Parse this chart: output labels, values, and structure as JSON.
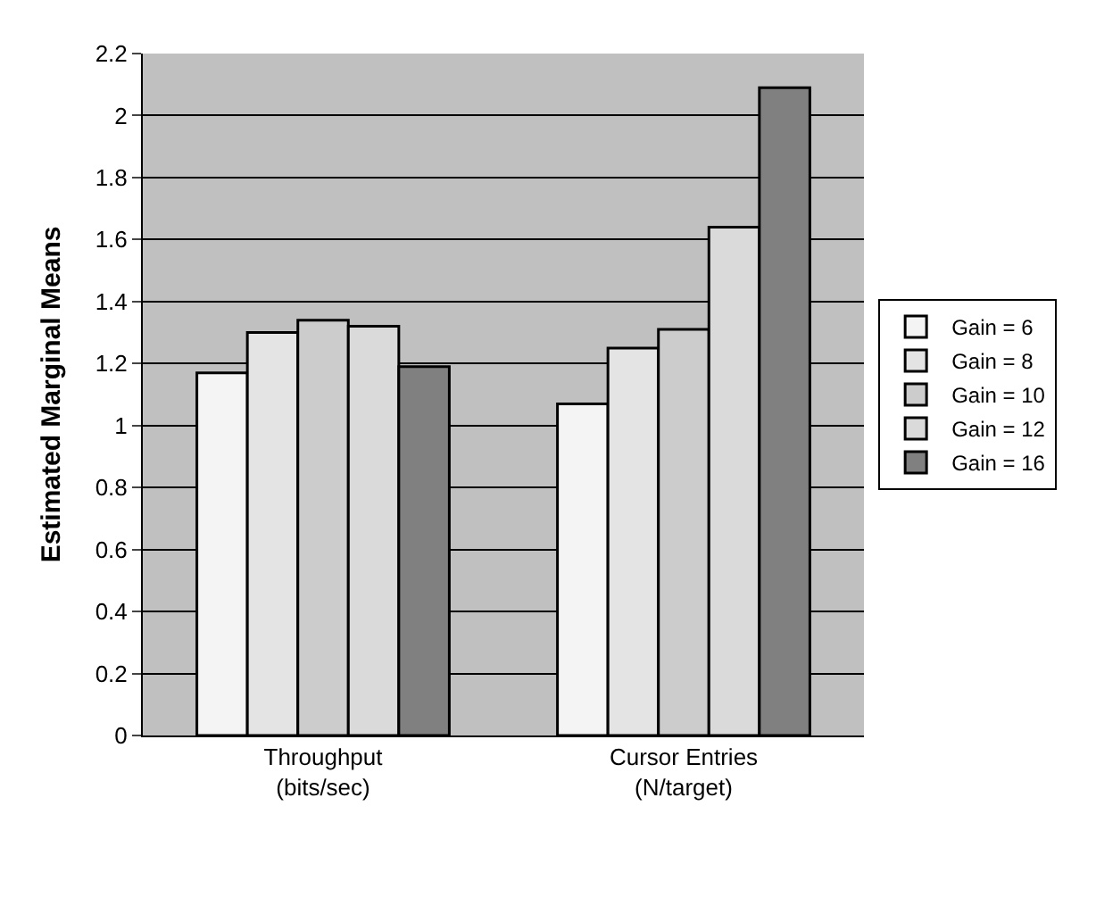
{
  "chart_data": {
    "type": "bar",
    "ylabel": "Estimated Marginal Means",
    "categories": [
      "Throughput\n(bits/sec)",
      "Cursor Entries\n(N/target)"
    ],
    "series": [
      {
        "name": "Gain = 6",
        "color": "#f4f4f4",
        "values": [
          1.17,
          1.07
        ]
      },
      {
        "name": "Gain = 8",
        "color": "#e4e4e4",
        "values": [
          1.3,
          1.25
        ]
      },
      {
        "name": "Gain = 10",
        "color": "#cccccc",
        "values": [
          1.34,
          1.31
        ]
      },
      {
        "name": "Gain = 12",
        "color": "#dadada",
        "values": [
          1.32,
          1.64
        ]
      },
      {
        "name": "Gain = 16",
        "color": "#808080",
        "values": [
          1.19,
          2.09
        ]
      }
    ],
    "ylim": [
      0,
      2.2
    ],
    "yticks": [
      0,
      0.2,
      0.4,
      0.6,
      0.8,
      1,
      1.2,
      1.4,
      1.6,
      1.8,
      2,
      2.2
    ],
    "grid": "y",
    "legend": "right"
  }
}
